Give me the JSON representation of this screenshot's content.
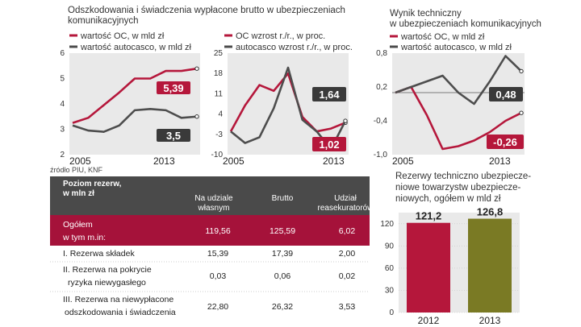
{
  "colors": {
    "red": "#b5173b",
    "gray": "#4d4d4d",
    "panel": "#e9e9e9",
    "table_header": "#4a4a4a",
    "table_highlight": "#a5123a",
    "olive": "#7a7a24",
    "dark_label": "#3a3a3a"
  },
  "chart1": {
    "title": "Odszkodowania i świadczenia wypłacone brutto w ubezpieczeniach komunikacyjnych",
    "legend": [
      "wartość OC, w mld zł",
      "wartość autocasco, w mld zł"
    ],
    "callout_oc": "5,39",
    "callout_ac": "3,5",
    "x_start": "2005",
    "x_end": "2013",
    "source": "źródło PIU, KNF"
  },
  "chart2": {
    "legend": [
      "OC wzrost r./r., w proc.",
      "autocasco wzrost r./r., w proc."
    ],
    "callout_oc": "1,02",
    "callout_ac": "1,64",
    "x_start": "2005",
    "x_end": "2013"
  },
  "chart3": {
    "title": "Wynik techniczny w ubezpieczeniach komunikacyjnych",
    "legend": [
      "wartość OC, w mld zł",
      "wartość autocasco, w mld zł"
    ],
    "callout_oc": "-0,26",
    "callout_ac": "0,48",
    "x_start": "2005",
    "x_end": "2013"
  },
  "chart4": {
    "title": "Rezerwy techniczno ubezpieczeniowe towarzystw ubezpieczeniowych, ogółem w mld zł"
  },
  "table": {
    "header": {
      "title1": "Poziom rezerw,",
      "title2": "w mln zł",
      "col1a": "Na udziale",
      "col1b": "własnym",
      "col2": "Brutto",
      "col3a": "Udział",
      "col3b": "reasekuratorów"
    },
    "rows": [
      {
        "label1": "Ogółem",
        "label2": "w tym m.in:",
        "v1": "119,56",
        "v2": "125,59",
        "v3": "6,02"
      },
      {
        "label1": "I. Rezerwa składek",
        "label2": "",
        "v1": "15,39",
        "v2": "17,39",
        "v3": "2,00"
      },
      {
        "label1": "II. Rezerwa na pokrycie",
        "label2": "ryzyka niewygasłego",
        "v1": "0,03",
        "v2": "0,06",
        "v3": "0,02"
      },
      {
        "label1": "III. Rezerwa na niewypłacone",
        "label2": "odszkodowania i świadczenia",
        "v1": "22,80",
        "v2": "26,32",
        "v3": "3,53"
      }
    ]
  },
  "chart_data": [
    {
      "type": "line",
      "title": "Odszkodowania i świadczenia wypłacone brutto w ubezpieczeniach komunikacyjnych",
      "x": [
        2005,
        2006,
        2007,
        2008,
        2009,
        2010,
        2011,
        2012,
        2013
      ],
      "series": [
        {
          "name": "wartość OC, w mld zł",
          "values": [
            3.25,
            3.45,
            3.95,
            4.45,
            5.0,
            5.0,
            5.3,
            5.3,
            5.39
          ]
        },
        {
          "name": "wartość autocasco, w mld zł",
          "values": [
            3.15,
            2.95,
            2.9,
            3.15,
            3.75,
            3.8,
            3.75,
            3.45,
            3.5
          ]
        }
      ],
      "yticks": [
        2,
        3,
        4,
        5,
        6
      ],
      "ylim": [
        2,
        6
      ],
      "xlabel": "",
      "ylabel": ""
    },
    {
      "type": "line",
      "title": "",
      "x": [
        2005,
        2006,
        2007,
        2008,
        2009,
        2010,
        2011,
        2012,
        2013
      ],
      "series": [
        {
          "name": "OC wzrost r./r., w proc.",
          "values": [
            -2,
            7,
            14,
            12,
            18,
            3,
            -2,
            -1,
            1.02
          ]
        },
        {
          "name": "autocasco wzrost r./r., w proc.",
          "values": [
            -2,
            -6,
            -4,
            6,
            20,
            2,
            -2,
            -8,
            1.64
          ]
        }
      ],
      "yticks": [
        -10,
        -3,
        4,
        11,
        18,
        25
      ],
      "ylim": [
        -10,
        25
      ]
    },
    {
      "type": "line",
      "title": "Wynik techniczny w ubezpieczeniach komunikacyjnych",
      "x": [
        2005,
        2006,
        2007,
        2008,
        2009,
        2010,
        2011,
        2012,
        2013
      ],
      "series": [
        {
          "name": "wartość OC, w mld zł",
          "values": [
            0.1,
            0.2,
            -0.3,
            -0.9,
            -0.85,
            -0.75,
            -0.6,
            -0.4,
            -0.26
          ]
        },
        {
          "name": "wartość autocasco, w mld zł",
          "values": [
            0.1,
            0.2,
            0.3,
            0.4,
            0.1,
            -0.1,
            0.3,
            0.75,
            0.48
          ]
        }
      ],
      "yticks": [
        -1.0,
        -0.4,
        0.2,
        0.8
      ],
      "ytick_labels": [
        "-1,0",
        "-0,4",
        "0,2",
        "0,8"
      ],
      "ylim": [
        -1.0,
        0.8
      ]
    },
    {
      "type": "bar",
      "title": "Rezerwy techniczno ubezpieczeniowe towarzystw ubezpieczeniowych, ogółem w mld zł",
      "categories": [
        "2012",
        "2013"
      ],
      "values": [
        121.2,
        126.8
      ],
      "value_labels": [
        "121,2",
        "126,8"
      ],
      "yticks": [
        0,
        30,
        60,
        90,
        120
      ],
      "ylim": [
        0,
        135
      ]
    }
  ]
}
